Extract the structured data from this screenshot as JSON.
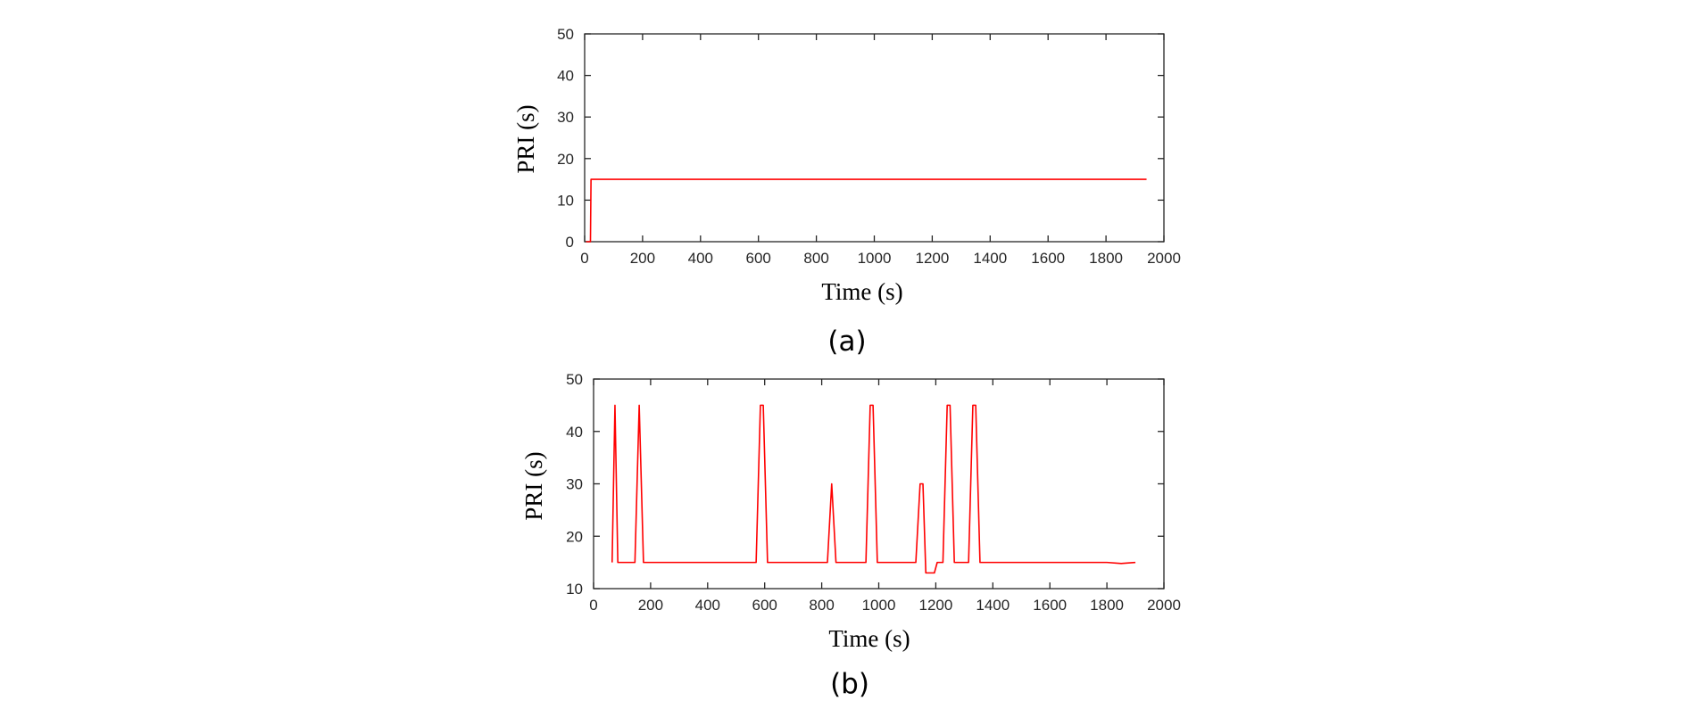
{
  "chart_data": [
    {
      "id": "a",
      "type": "line",
      "caption": "(a)",
      "xlabel": "Time (s)",
      "ylabel": "PRI (s)",
      "xlim": [
        0,
        2000
      ],
      "ylim": [
        0,
        50
      ],
      "xticks": [
        0,
        200,
        400,
        600,
        800,
        1000,
        1200,
        1400,
        1600,
        1800,
        2000
      ],
      "yticks": [
        0,
        10,
        20,
        30,
        40,
        50
      ],
      "grid": false,
      "color": "#ff0000",
      "series": [
        {
          "name": "PRI",
          "x": [
            5,
            20,
            22,
            100,
            300,
            500,
            700,
            900,
            1100,
            1300,
            1500,
            1700,
            1900,
            1940
          ],
          "y": [
            0,
            0,
            15,
            15,
            15,
            15,
            15,
            15,
            15,
            15,
            15,
            15,
            15,
            15
          ]
        }
      ]
    },
    {
      "id": "b",
      "type": "line",
      "caption": "(b)",
      "xlabel": "Time (s)",
      "ylabel": "PRI (s)",
      "xlim": [
        0,
        2000
      ],
      "ylim": [
        10,
        50
      ],
      "xticks": [
        0,
        200,
        400,
        600,
        800,
        1000,
        1200,
        1400,
        1600,
        1800,
        2000
      ],
      "yticks": [
        10,
        20,
        30,
        40,
        50
      ],
      "grid": false,
      "color": "#ff0000",
      "series": [
        {
          "name": "PRI",
          "x": [
            65,
            75,
            85,
            145,
            160,
            175,
            300,
            570,
            585,
            595,
            610,
            700,
            820,
            835,
            850,
            955,
            970,
            980,
            995,
            1130,
            1145,
            1155,
            1165,
            1195,
            1205,
            1225,
            1240,
            1250,
            1265,
            1315,
            1330,
            1340,
            1355,
            1400,
            1600,
            1800,
            1850,
            1900
          ],
          "y": [
            15,
            45,
            15,
            15,
            45,
            15,
            15,
            15,
            45,
            45,
            15,
            15,
            15,
            30,
            15,
            15,
            45,
            45,
            15,
            15,
            30,
            30,
            13,
            13,
            15,
            15,
            45,
            45,
            15,
            15,
            45,
            45,
            15,
            15,
            15,
            15,
            14.8,
            15
          ]
        }
      ]
    }
  ]
}
